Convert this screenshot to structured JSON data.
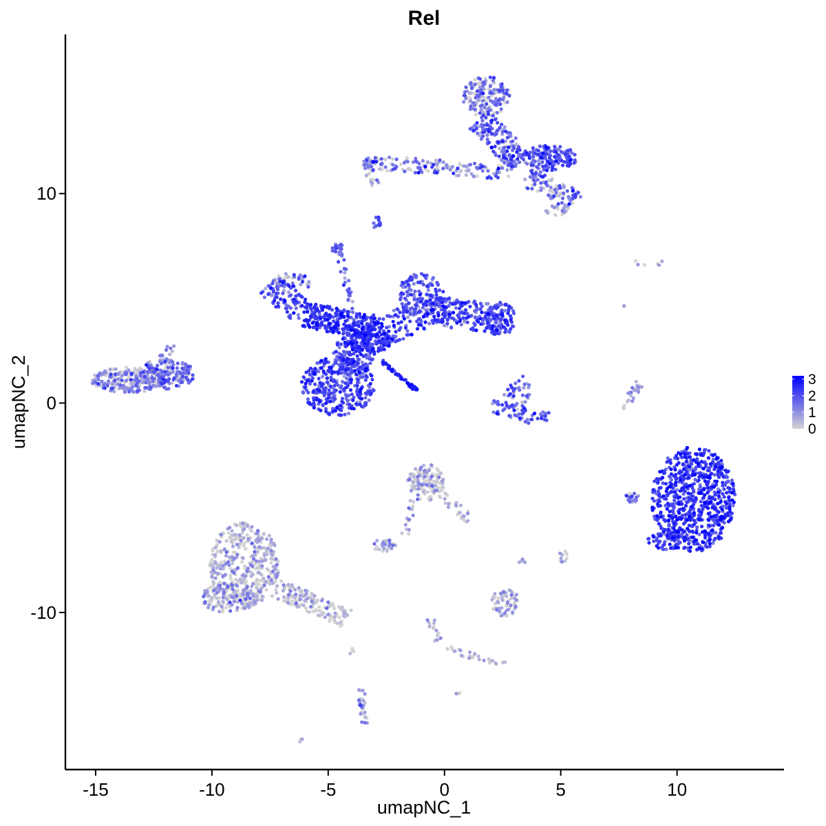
{
  "chart_data": {
    "type": "scatter",
    "title": "Rel",
    "xlabel": "umapNC_1",
    "ylabel": "umapNC_2",
    "xlim": [
      -16.3,
      14.6
    ],
    "ylim": [
      -17.5,
      17.6
    ],
    "x_ticks": [
      -15,
      -10,
      -5,
      0,
      5,
      10
    ],
    "x_tick_labels": [
      "-15",
      "-10",
      "-5",
      "0",
      "5",
      "10"
    ],
    "y_ticks": [
      -10,
      0,
      10
    ],
    "y_tick_labels": [
      "-10",
      "0",
      "10"
    ],
    "grid": false,
    "legend": {
      "placement": "right",
      "type": "colorbar",
      "min": 0,
      "max": 3.2,
      "ticks": [
        0,
        1,
        2,
        3
      ],
      "tick_labels": [
        "0",
        "1",
        "2",
        "3"
      ],
      "color_low": "#d3d3d3",
      "color_high": "#0000ff"
    },
    "clusters": [
      {
        "shape": "ellipse",
        "cx": -13.6,
        "cy": 1.1,
        "rx": 1.6,
        "ry": 0.6,
        "n": 240,
        "expr_mean": 1.0,
        "expr_sd": 0.6
      },
      {
        "shape": "ellipse",
        "cx": -12.0,
        "cy": 1.5,
        "rx": 1.1,
        "ry": 0.6,
        "n": 110,
        "expr_mean": 1.3,
        "expr_sd": 0.6
      },
      {
        "shape": "segment",
        "x1": -12.2,
        "y1": 1.0,
        "x2": -10.8,
        "y2": 1.4,
        "width": 0.4,
        "n": 40,
        "expr_mean": 1.6,
        "expr_sd": 0.5
      },
      {
        "shape": "segment",
        "x1": -12.3,
        "y1": 2.0,
        "x2": -11.6,
        "y2": 2.8,
        "width": 0.2,
        "n": 15,
        "expr_mean": 1.0,
        "expr_sd": 0.5
      },
      {
        "shape": "ellipse",
        "cx": -4.6,
        "cy": 0.8,
        "rx": 1.6,
        "ry": 1.4,
        "n": 330,
        "expr_mean": 2.0,
        "expr_sd": 0.5
      },
      {
        "shape": "ellipse",
        "cx": -3.9,
        "cy": 2.3,
        "rx": 0.9,
        "ry": 1.0,
        "n": 150,
        "expr_mean": 2.0,
        "expr_sd": 0.5
      },
      {
        "shape": "ellipse",
        "cx": -3.3,
        "cy": 3.0,
        "rx": 1.1,
        "ry": 0.6,
        "n": 130,
        "expr_mean": 2.3,
        "expr_sd": 0.4
      },
      {
        "shape": "segment",
        "x1": -6.0,
        "y1": 4.2,
        "x2": -3.0,
        "y2": 3.6,
        "width": 0.6,
        "n": 230,
        "expr_mean": 2.3,
        "expr_sd": 0.5
      },
      {
        "shape": "segment",
        "x1": -7.6,
        "y1": 5.6,
        "x2": -6.0,
        "y2": 4.3,
        "width": 0.6,
        "n": 90,
        "expr_mean": 1.9,
        "expr_sd": 0.6
      },
      {
        "shape": "segment",
        "x1": -7.2,
        "y1": 5.9,
        "x2": -5.8,
        "y2": 5.8,
        "width": 0.3,
        "n": 40,
        "expr_mean": 1.3,
        "expr_sd": 0.7
      },
      {
        "shape": "segment",
        "x1": -3.0,
        "y1": 3.2,
        "x2": 0.0,
        "y2": 4.8,
        "width": 0.7,
        "n": 160,
        "expr_mean": 1.9,
        "expr_sd": 0.6
      },
      {
        "shape": "ellipse",
        "cx": -1.0,
        "cy": 5.2,
        "rx": 1.0,
        "ry": 1.0,
        "n": 120,
        "expr_mean": 1.8,
        "expr_sd": 0.6
      },
      {
        "shape": "segment",
        "x1": -0.5,
        "y1": 4.4,
        "x2": 2.5,
        "y2": 4.0,
        "width": 0.7,
        "n": 170,
        "expr_mean": 1.8,
        "expr_sd": 0.6
      },
      {
        "shape": "ellipse",
        "cx": 2.4,
        "cy": 4.0,
        "rx": 0.7,
        "ry": 0.8,
        "n": 90,
        "expr_mean": 2.0,
        "expr_sd": 0.5
      },
      {
        "shape": "segment",
        "x1": -2.7,
        "y1": 2.0,
        "x2": -1.2,
        "y2": 0.6,
        "width": 0.08,
        "n": 50,
        "expr_mean": 2.5,
        "expr_sd": 0.3
      },
      {
        "shape": "segment",
        "x1": -4.6,
        "y1": 7.5,
        "x2": -3.9,
        "y2": 4.0,
        "width": 0.15,
        "n": 30,
        "expr_mean": 1.5,
        "expr_sd": 0.6
      },
      {
        "shape": "ellipse",
        "cx": -4.6,
        "cy": 7.4,
        "rx": 0.3,
        "ry": 0.2,
        "n": 15,
        "expr_mean": 1.6,
        "expr_sd": 0.5
      },
      {
        "shape": "ellipse",
        "cx": 1.8,
        "cy": 14.6,
        "rx": 1.0,
        "ry": 1.0,
        "n": 180,
        "expr_mean": 1.2,
        "expr_sd": 0.7
      },
      {
        "shape": "segment",
        "x1": 1.5,
        "y1": 13.5,
        "x2": 3.3,
        "y2": 11.5,
        "width": 0.6,
        "n": 150,
        "expr_mean": 1.6,
        "expr_sd": 0.6
      },
      {
        "shape": "ellipse",
        "cx": 4.5,
        "cy": 11.7,
        "rx": 1.2,
        "ry": 0.6,
        "n": 150,
        "expr_mean": 1.9,
        "expr_sd": 0.5
      },
      {
        "shape": "segment",
        "x1": 3.5,
        "y1": 10.8,
        "x2": 5.8,
        "y2": 9.6,
        "width": 0.5,
        "n": 100,
        "expr_mean": 1.4,
        "expr_sd": 0.7
      },
      {
        "shape": "segment",
        "x1": -3.5,
        "y1": 11.5,
        "x2": 3.0,
        "y2": 11.0,
        "width": 0.35,
        "n": 150,
        "expr_mean": 1.2,
        "expr_sd": 0.8
      },
      {
        "shape": "segment",
        "x1": -3.4,
        "y1": 11.6,
        "x2": -3.0,
        "y2": 10.4,
        "width": 0.2,
        "n": 20,
        "expr_mean": 0.8,
        "expr_sd": 0.6
      },
      {
        "shape": "ellipse",
        "cx": 4.8,
        "cy": 9.2,
        "rx": 0.5,
        "ry": 0.3,
        "n": 20,
        "expr_mean": 0.5,
        "expr_sd": 0.5
      },
      {
        "shape": "ellipse",
        "cx": -2.9,
        "cy": 8.6,
        "rx": 0.2,
        "ry": 0.3,
        "n": 12,
        "expr_mean": 1.7,
        "expr_sd": 0.5
      },
      {
        "shape": "segment",
        "x1": 2.0,
        "y1": -0.2,
        "x2": 4.4,
        "y2": -0.8,
        "width": 0.35,
        "n": 50,
        "expr_mean": 1.8,
        "expr_sd": 0.5
      },
      {
        "shape": "ellipse",
        "cx": 3.1,
        "cy": 0.5,
        "rx": 0.6,
        "ry": 0.9,
        "n": 40,
        "expr_mean": 1.6,
        "expr_sd": 0.7
      },
      {
        "shape": "ellipse",
        "cx": 10.7,
        "cy": -4.6,
        "rx": 1.8,
        "ry": 2.5,
        "n": 720,
        "expr_mean": 2.3,
        "expr_sd": 0.5
      },
      {
        "shape": "ellipse",
        "cx": 9.6,
        "cy": -6.6,
        "rx": 0.9,
        "ry": 0.4,
        "n": 60,
        "expr_mean": 2.2,
        "expr_sd": 0.5
      },
      {
        "shape": "ellipse",
        "cx": 8.1,
        "cy": -4.5,
        "rx": 0.3,
        "ry": 0.3,
        "n": 20,
        "expr_mean": 1.3,
        "expr_sd": 0.7
      },
      {
        "shape": "segment",
        "x1": 7.7,
        "y1": -0.3,
        "x2": 8.4,
        "y2": 1.0,
        "width": 0.2,
        "n": 25,
        "expr_mean": 0.5,
        "expr_sd": 0.5
      },
      {
        "shape": "ellipse",
        "cx": -8.6,
        "cy": -7.7,
        "rx": 1.5,
        "ry": 2.0,
        "n": 420,
        "expr_mean": 0.4,
        "expr_sd": 0.6
      },
      {
        "shape": "ellipse",
        "cx": -9.3,
        "cy": -9.3,
        "rx": 1.2,
        "ry": 0.7,
        "n": 120,
        "expr_mean": 0.5,
        "expr_sd": 0.6
      },
      {
        "shape": "segment",
        "x1": -7.3,
        "y1": -8.8,
        "x2": -4.2,
        "y2": -10.3,
        "width": 0.45,
        "n": 150,
        "expr_mean": 0.3,
        "expr_sd": 0.5
      },
      {
        "shape": "ellipse",
        "cx": -0.8,
        "cy": -3.8,
        "rx": 0.8,
        "ry": 0.9,
        "n": 130,
        "expr_mean": 0.4,
        "expr_sd": 0.6
      },
      {
        "shape": "segment",
        "x1": -0.3,
        "y1": -4.2,
        "x2": 1.1,
        "y2": -5.6,
        "width": 0.25,
        "n": 30,
        "expr_mean": 0.2,
        "expr_sd": 0.4
      },
      {
        "shape": "segment",
        "x1": -1.3,
        "y1": -4.5,
        "x2": -1.7,
        "y2": -6.3,
        "width": 0.15,
        "n": 15,
        "expr_mean": 0.8,
        "expr_sd": 0.6
      },
      {
        "shape": "ellipse",
        "cx": -2.6,
        "cy": -6.8,
        "rx": 0.5,
        "ry": 0.3,
        "n": 30,
        "expr_mean": 0.6,
        "expr_sd": 0.6
      },
      {
        "shape": "ellipse",
        "cx": 2.6,
        "cy": -9.5,
        "rx": 0.6,
        "ry": 0.7,
        "n": 60,
        "expr_mean": 0.5,
        "expr_sd": 0.6
      },
      {
        "shape": "segment",
        "x1": -0.6,
        "y1": -10.3,
        "x2": -0.2,
        "y2": -11.6,
        "width": 0.15,
        "n": 15,
        "expr_mean": 0.3,
        "expr_sd": 0.4
      },
      {
        "shape": "segment",
        "x1": 0.0,
        "y1": -11.7,
        "x2": 2.6,
        "y2": -12.5,
        "width": 0.15,
        "n": 30,
        "expr_mean": 0.4,
        "expr_sd": 0.5
      },
      {
        "shape": "segment",
        "x1": -3.6,
        "y1": -13.6,
        "x2": -3.4,
        "y2": -15.3,
        "width": 0.15,
        "n": 30,
        "expr_mean": 0.6,
        "expr_sd": 0.6
      },
      {
        "shape": "ellipse",
        "cx": 5.1,
        "cy": -7.3,
        "rx": 0.2,
        "ry": 0.3,
        "n": 10,
        "expr_mean": 0.5,
        "expr_sd": 0.5
      },
      {
        "shape": "ellipse",
        "cx": 3.4,
        "cy": -7.6,
        "rx": 0.2,
        "ry": 0.2,
        "n": 5,
        "expr_mean": 0.3,
        "expr_sd": 0.4
      },
      {
        "shape": "ellipse",
        "cx": -4.0,
        "cy": -11.8,
        "rx": 0.1,
        "ry": 0.2,
        "n": 4,
        "expr_mean": 0.2,
        "expr_sd": 0.3
      },
      {
        "shape": "ellipse",
        "cx": 0.6,
        "cy": -13.9,
        "rx": 0.1,
        "ry": 0.1,
        "n": 3,
        "expr_mean": 0.2,
        "expr_sd": 0.3
      },
      {
        "shape": "ellipse",
        "cx": -6.2,
        "cy": -16.1,
        "rx": 0.1,
        "ry": 0.1,
        "n": 3,
        "expr_mean": 0.2,
        "expr_sd": 0.3
      },
      {
        "shape": "ellipse",
        "cx": 8.9,
        "cy": 6.7,
        "rx": 0.8,
        "ry": 0.2,
        "n": 6,
        "expr_mean": 0.4,
        "expr_sd": 0.5
      },
      {
        "shape": "ellipse",
        "cx": 7.7,
        "cy": 4.8,
        "rx": 0.1,
        "ry": 0.2,
        "n": 3,
        "expr_mean": 0.8,
        "expr_sd": 0.5
      }
    ]
  }
}
